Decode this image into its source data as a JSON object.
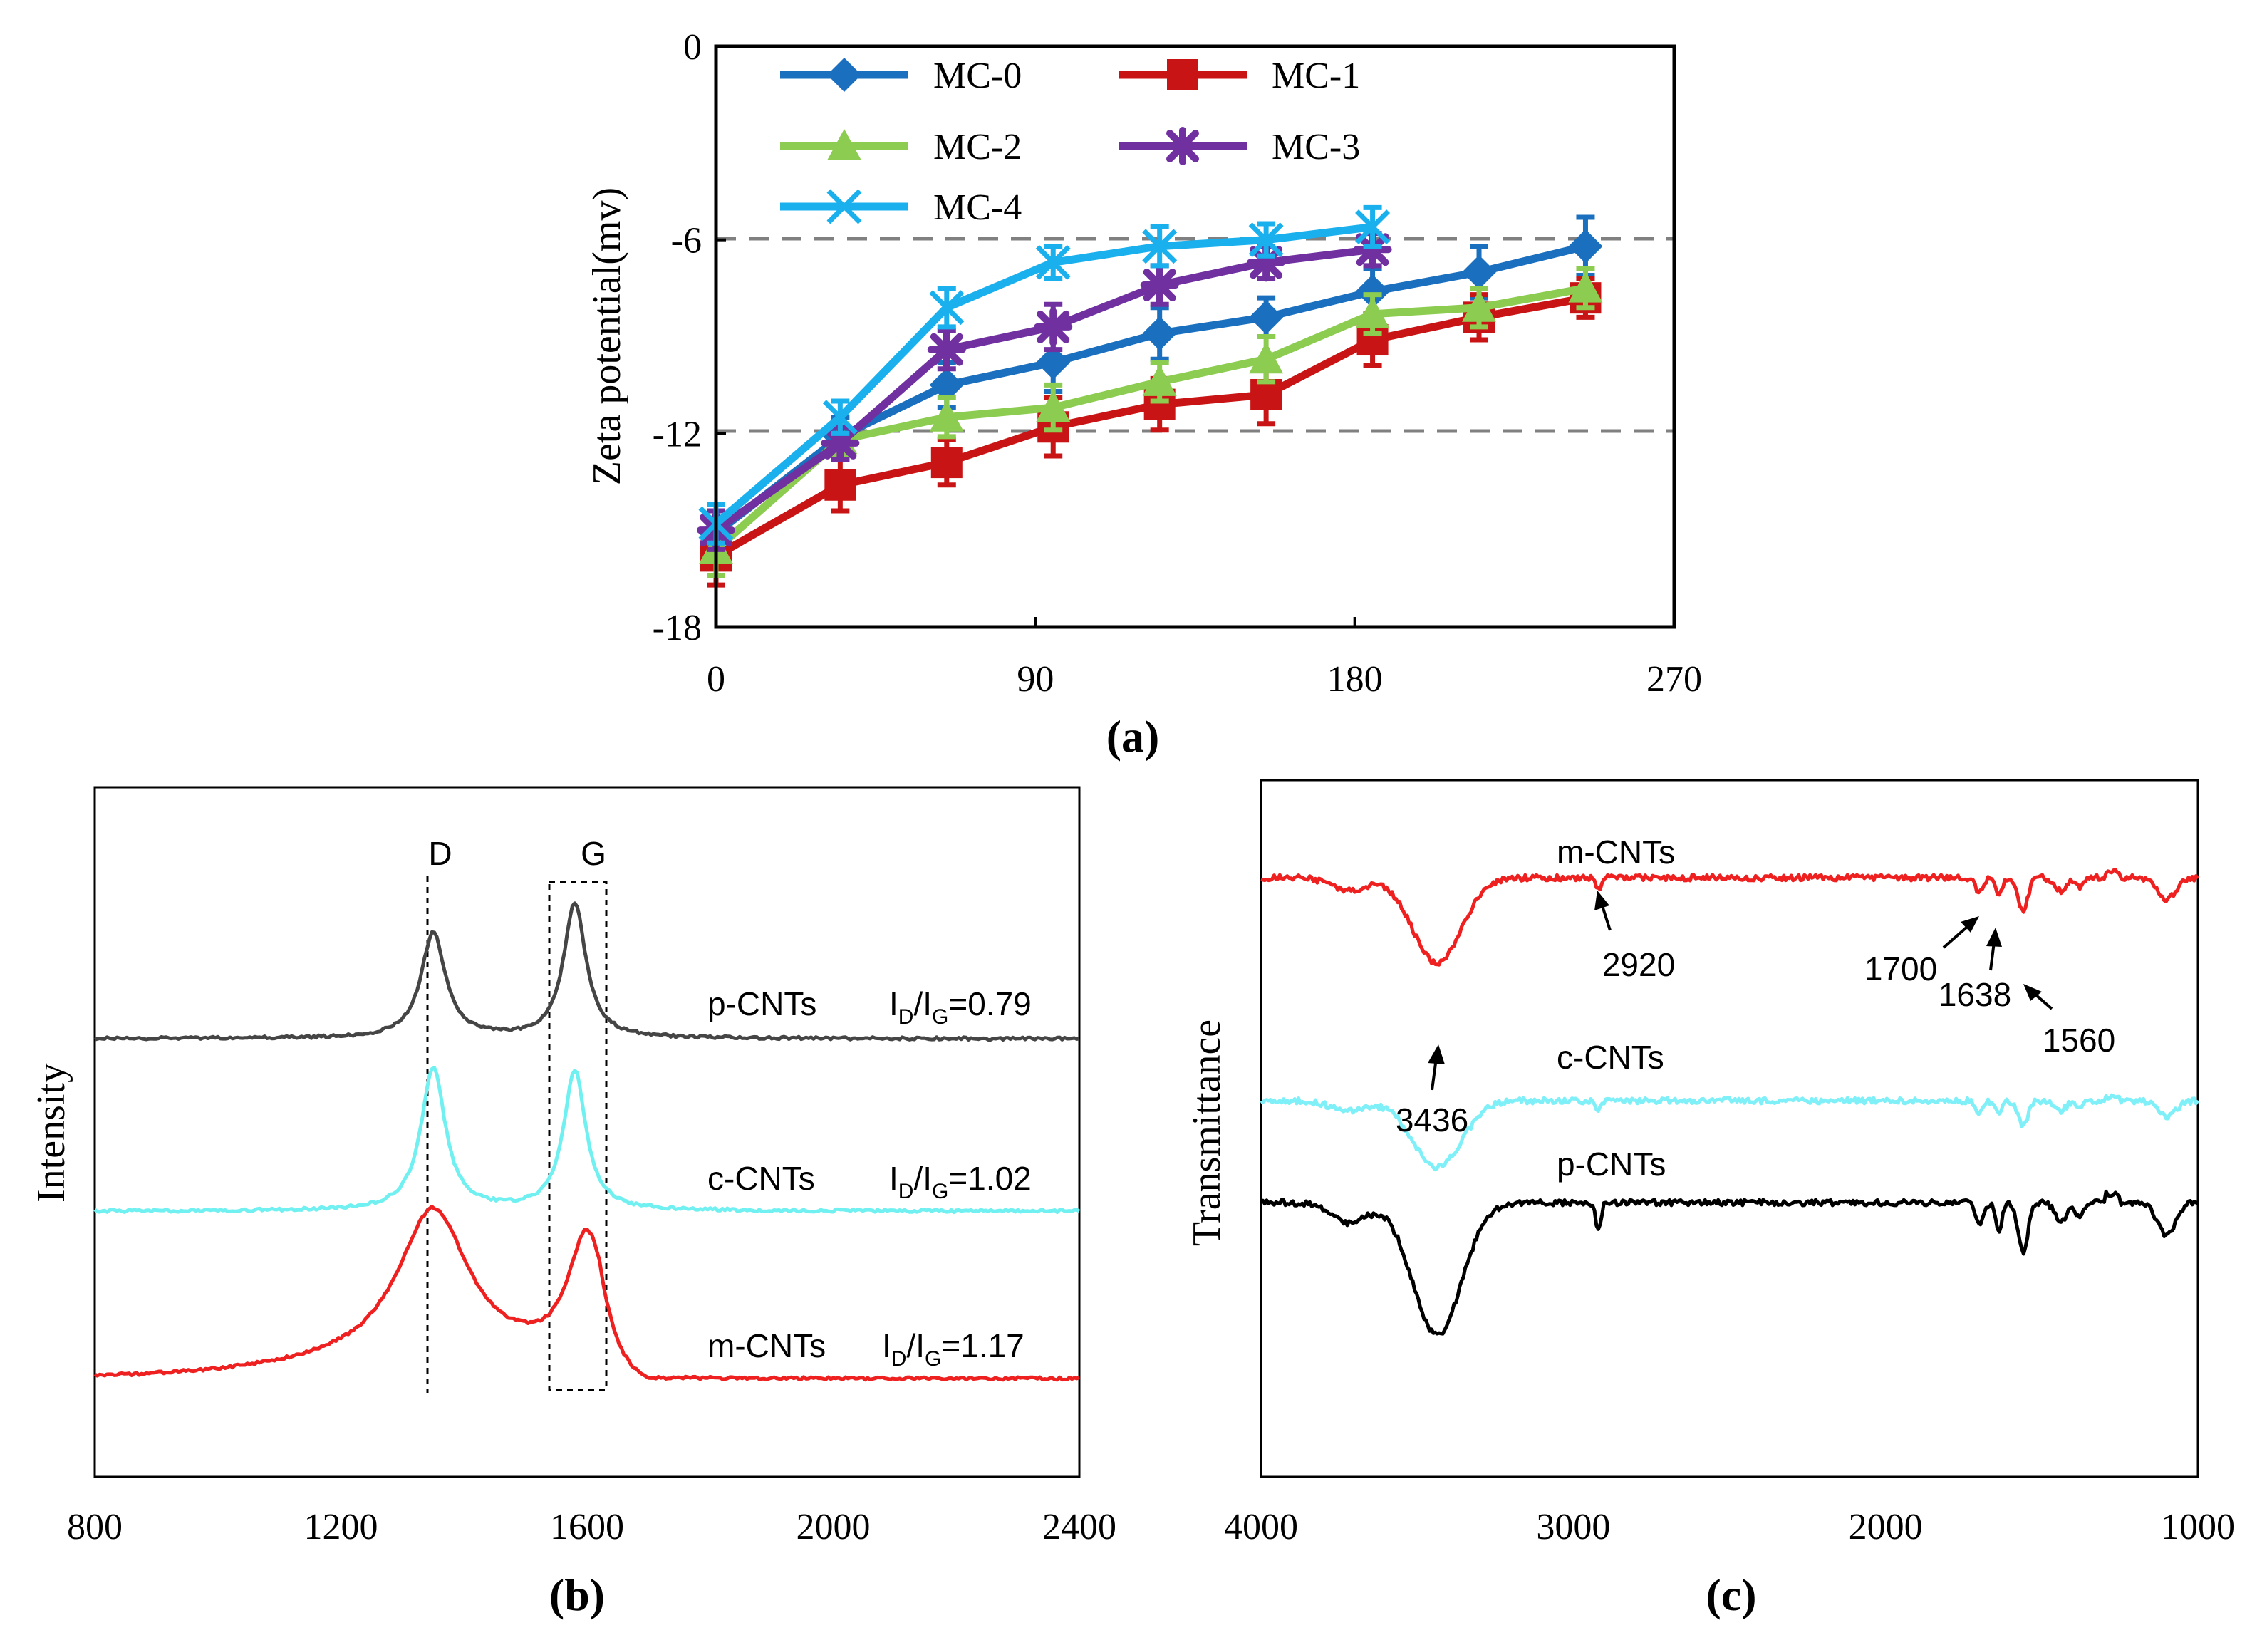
{
  "colors": {
    "MC-0": "#1a6fbf",
    "MC-1": "#c81414",
    "MC-2": "#8ccc50",
    "MC-3": "#7030a0",
    "MC-4": "#1ab0ee",
    "p-CNTs": "#454545",
    "c-CNTs": "#70f0f0",
    "m-CNTs": "#ee2020",
    "ir_p": "#000000",
    "ir_c": "#80f0f8",
    "ir_m": "#ee2020",
    "axis": "#000000",
    "dash": "#808080"
  },
  "chart_data": [
    {
      "panel": "a",
      "type": "line",
      "panel_label": "(a)",
      "ylabel": "Zeta potential(mv)",
      "xlabel": "",
      "xlim": [
        0,
        270
      ],
      "ylim": [
        -18,
        0
      ],
      "xticks": [
        0,
        90,
        180,
        270
      ],
      "yticks": [
        0,
        -6,
        -12,
        -18
      ],
      "grid": false,
      "legend_position": "top-left",
      "reference_lines": [
        -6,
        -12
      ],
      "series": [
        {
          "name": "MC-0",
          "marker": "diamond",
          "x": [
            0,
            35,
            65,
            95,
            125,
            155,
            185,
            215,
            245
          ],
          "y": [
            -15.1,
            -12.1,
            -10.5,
            -9.8,
            -8.9,
            -8.4,
            -7.6,
            -7.0,
            -6.2
          ],
          "err": [
            0.7,
            0.6,
            0.7,
            0.9,
            0.8,
            0.6,
            0.7,
            0.8,
            0.9
          ]
        },
        {
          "name": "MC-1",
          "marker": "square",
          "x": [
            0,
            35,
            65,
            95,
            125,
            155,
            185,
            215,
            245
          ],
          "y": [
            -15.8,
            -13.6,
            -12.9,
            -11.8,
            -11.1,
            -10.8,
            -9.1,
            -8.4,
            -7.8
          ],
          "err": [
            0.9,
            0.8,
            0.7,
            0.9,
            0.8,
            0.9,
            0.8,
            0.7,
            0.6
          ]
        },
        {
          "name": "MC-2",
          "marker": "triangle",
          "x": [
            0,
            35,
            65,
            95,
            125,
            155,
            185,
            215,
            245
          ],
          "y": [
            -15.6,
            -12.2,
            -11.5,
            -11.2,
            -10.4,
            -9.7,
            -8.3,
            -8.1,
            -7.5
          ],
          "err": [
            0.8,
            0.5,
            0.6,
            0.7,
            0.6,
            0.7,
            0.6,
            0.6,
            0.6
          ]
        },
        {
          "name": "MC-3",
          "marker": "asterisk",
          "x": [
            0,
            35,
            65,
            95,
            125,
            155,
            185
          ],
          "y": [
            -15.0,
            -12.3,
            -9.4,
            -8.7,
            -7.4,
            -6.7,
            -6.3
          ],
          "err": [
            0.6,
            0.5,
            0.6,
            0.7,
            0.6,
            0.5,
            0.5
          ]
        },
        {
          "name": "MC-4",
          "marker": "x",
          "x": [
            0,
            35,
            65,
            95,
            125,
            155,
            185
          ],
          "y": [
            -14.8,
            -11.5,
            -8.1,
            -6.7,
            -6.2,
            -6.0,
            -5.6
          ],
          "err": [
            0.6,
            0.5,
            0.6,
            0.5,
            0.6,
            0.5,
            0.6
          ]
        }
      ]
    },
    {
      "panel": "b",
      "type": "line",
      "panel_label": "(b)",
      "ylabel": "Intensity",
      "xlabel": "",
      "xlim": [
        800,
        2400
      ],
      "xticks": [
        800,
        1200,
        1600,
        2000,
        2400
      ],
      "peak_labels": {
        "D": 1350,
        "G": 1580
      },
      "g_band_range": [
        1535,
        1625
      ],
      "series": [
        {
          "name": "p-CNTs",
          "ratio_label": "I_D/I_G=0.79",
          "baseline": 0.0,
          "peaks": [
            [
              1350,
              0.78,
              24
            ],
            [
              1580,
              1.0,
              22
            ]
          ]
        },
        {
          "name": "c-CNTs",
          "ratio_label": "I_D/I_G=1.02",
          "baseline": 0.0,
          "peaks": [
            [
              1350,
              1.0,
              24
            ],
            [
              1580,
              0.98,
              22
            ]
          ]
        },
        {
          "name": "m-CNTs",
          "ratio_label": "I_D/I_G=1.17",
          "baseline": 0.0,
          "peaks": [
            [
              1350,
              1.12,
              70
            ],
            [
              1600,
              0.96,
              38
            ]
          ]
        }
      ]
    },
    {
      "panel": "c",
      "type": "line",
      "panel_label": "(c)",
      "ylabel": "Transmittance",
      "xlabel": "",
      "xlim": [
        4000,
        1000
      ],
      "xticks": [
        4000,
        3000,
        2000,
        1000
      ],
      "series": [
        {
          "name": "m-CNTs"
        },
        {
          "name": "c-CNTs"
        },
        {
          "name": "p-CNTs"
        }
      ],
      "annotations": [
        "3436",
        "2920",
        "1700",
        "1638",
        "1560"
      ]
    }
  ]
}
